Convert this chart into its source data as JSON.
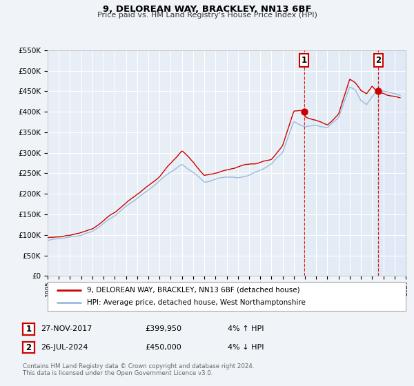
{
  "title": "9, DELOREAN WAY, BRACKLEY, NN13 6BF",
  "subtitle": "Price paid vs. HM Land Registry's House Price Index (HPI)",
  "legend_line1": "9, DELOREAN WAY, BRACKLEY, NN13 6BF (detached house)",
  "legend_line2": "HPI: Average price, detached house, West Northamptonshire",
  "footnote1": "Contains HM Land Registry data © Crown copyright and database right 2024.",
  "footnote2": "This data is licensed under the Open Government Licence v3.0.",
  "annotation1_label": "1",
  "annotation1_date": "27-NOV-2017",
  "annotation1_price": "£399,950",
  "annotation1_hpi": "4% ↑ HPI",
  "annotation2_label": "2",
  "annotation2_date": "26-JUL-2024",
  "annotation2_price": "£450,000",
  "annotation2_hpi": "4% ↓ HPI",
  "price_color": "#cc0000",
  "hpi_color": "#99bbdd",
  "background_color": "#f0f4f8",
  "plot_bg_color": "#e8eef5",
  "annotation_box_color": "#cc0000",
  "grid_color": "#ffffff",
  "shaded_region_color": "#dce8f5",
  "ylim": [
    0,
    550000
  ],
  "xlim_start": 1995.0,
  "xlim_end": 2027.0,
  "marker1_x": 2017.91,
  "marker1_y": 399950,
  "marker2_x": 2024.55,
  "marker2_y": 450000,
  "vline1_x": 2017.91,
  "vline2_x": 2024.55
}
